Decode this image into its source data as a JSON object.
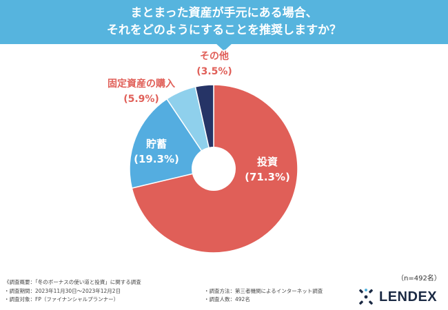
{
  "header": {
    "line1": "まとまった資産が手元にある場合、",
    "line2": "それをどのようにすることを推奨しますか？"
  },
  "chart_data": {
    "type": "pie",
    "donut": true,
    "slices": [
      {
        "name": "投資",
        "value": 71.3,
        "label": "(71.3%)",
        "color": "#e05f58"
      },
      {
        "name": "貯蓄",
        "value": 19.3,
        "label": "(19.3%)",
        "color": "#54ade0"
      },
      {
        "name": "固定資産の購入",
        "value": 5.9,
        "label": "(5.9%)",
        "color": "#8fd0ec"
      },
      {
        "name": "その他",
        "value": 3.5,
        "label": "(3.5%)",
        "color": "#263466"
      }
    ]
  },
  "notes": {
    "overview": "《調査概要：「冬のボーナスの使い道と投資」に関する調査",
    "period": "・調査期間：2023年11月30日～2023年12月2日",
    "target": "・調査対象：FP（ファイナンシャルプランナー）",
    "method": "・調査方法：第三者機関によるインターネット調査",
    "count": "・調査人数：492名"
  },
  "sample_size": "（n=492名）",
  "logo": {
    "text": "LENDEX"
  },
  "colors": {
    "header": "#56b4de",
    "label": "#e05f58",
    "inner_label": "#ffffff"
  }
}
